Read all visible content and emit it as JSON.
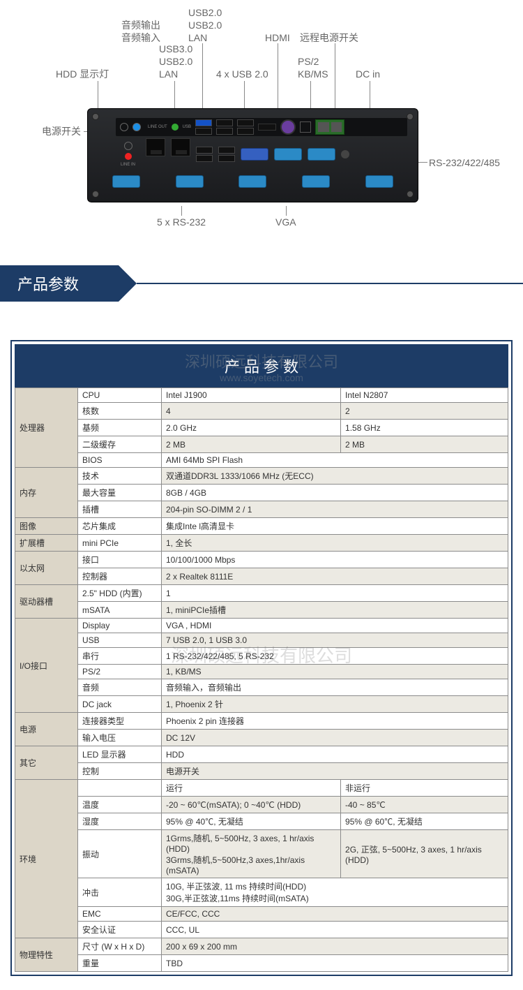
{
  "diagram": {
    "labels": {
      "hdd_led": "HDD 显示灯",
      "power_sw": "电源开关",
      "audio_out": "音频输出",
      "audio_in": "音频输入",
      "usb30": "USB3.0",
      "usb20_a": "USB2.0",
      "lan_a": "LAN",
      "usb20_b1": "USB2.0",
      "usb20_b2": "USB2.0",
      "lan_b": "LAN",
      "usb4": "4 x USB 2.0",
      "hdmi": "HDMI",
      "remote_pwr": "远程电源开关",
      "ps2": "PS/2",
      "kbms": "KB/MS",
      "dcin": "DC in",
      "rs232_485": "RS-232/422/485",
      "rs232x5": "5 x RS-232",
      "vga": "VGA"
    },
    "watermark_cn": "深圳硕远科技有限公司",
    "watermark_en": "www.soyetech.com"
  },
  "banner_title": "产品参数",
  "spec_title": "产 品 参 数",
  "spec": {
    "groups": [
      {
        "cat": "处理器",
        "rows": [
          {
            "sub": "CPU",
            "vals": [
              "Intel J1900",
              "Intel N2807"
            ]
          },
          {
            "sub": "核数",
            "vals": [
              "4",
              "2"
            ]
          },
          {
            "sub": "基频",
            "vals": [
              "2.0 GHz",
              "1.58 GHz"
            ]
          },
          {
            "sub": "二级缓存",
            "vals": [
              "2 MB",
              "2 MB"
            ]
          },
          {
            "sub": "BIOS",
            "vals": [
              "AMI 64Mb SPI Flash"
            ],
            "span": true
          }
        ]
      },
      {
        "cat": "内存",
        "rows": [
          {
            "sub": "技术",
            "vals": [
              "双通道DDR3L 1333/1066 MHz (无ECC)"
            ],
            "span": true
          },
          {
            "sub": "最大容量",
            "vals": [
              "8GB / 4GB"
            ],
            "span": true
          },
          {
            "sub": "插槽",
            "vals": [
              "204-pin SO-DIMM 2 / 1"
            ],
            "span": true
          }
        ]
      },
      {
        "cat": "图像",
        "rows": [
          {
            "sub": "芯片集成",
            "vals": [
              "集成Inte l高清显卡"
            ],
            "span": true
          }
        ]
      },
      {
        "cat": "扩展槽",
        "rows": [
          {
            "sub": "mini PCIe",
            "vals": [
              "1, 全长"
            ],
            "span": true
          }
        ]
      },
      {
        "cat": "以太网",
        "rows": [
          {
            "sub": "接口",
            "vals": [
              "10/100/1000 Mbps"
            ],
            "span": true
          },
          {
            "sub": "控制器",
            "vals": [
              "2 x Realtek 8111E"
            ],
            "span": true
          }
        ]
      },
      {
        "cat": "驱动器槽",
        "rows": [
          {
            "sub": "2.5\" HDD (内置)",
            "vals": [
              "1"
            ],
            "span": true
          },
          {
            "sub": "mSATA",
            "vals": [
              "1, miniPCIe插槽"
            ],
            "span": true
          }
        ]
      },
      {
        "cat": "I/O接口",
        "rows": [
          {
            "sub": "Display",
            "vals": [
              "VGA , HDMI"
            ],
            "span": true
          },
          {
            "sub": "USB",
            "vals": [
              "7 USB 2.0, 1 USB 3.0"
            ],
            "span": true
          },
          {
            "sub": "串行",
            "vals": [
              "1 RS-232/422/485, 5 RS-232"
            ],
            "span": true
          },
          {
            "sub": "PS/2",
            "vals": [
              "1, KB/MS"
            ],
            "span": true
          },
          {
            "sub": "音频",
            "vals": [
              "音频输入，音频输出"
            ],
            "span": true
          },
          {
            "sub": "DC jack",
            "vals": [
              "1, Phoenix 2 针"
            ],
            "span": true
          }
        ]
      },
      {
        "cat": "电源",
        "rows": [
          {
            "sub": "连接器类型",
            "vals": [
              "Phoenix 2 pin 连接器"
            ],
            "span": true
          },
          {
            "sub": "输入电压",
            "vals": [
              "DC 12V"
            ],
            "span": true
          }
        ]
      },
      {
        "cat": "其它",
        "rows": [
          {
            "sub": "LED 显示器",
            "vals": [
              "HDD"
            ],
            "span": true
          },
          {
            "sub": "控制",
            "vals": [
              "电源开关"
            ],
            "span": true
          }
        ]
      },
      {
        "cat": "环境",
        "header": [
          "运行",
          "非运行"
        ],
        "rows": [
          {
            "sub": "温度",
            "vals": [
              "-20 ~ 60℃(mSATA); 0 ~40℃ (HDD)",
              "-40 ~ 85℃"
            ]
          },
          {
            "sub": "湿度",
            "vals": [
              "95% @ 40℃, 无凝结",
              "95% @ 60℃, 无凝结"
            ]
          },
          {
            "sub": "振动",
            "vals": [
              "1Grms,随机, 5~500Hz, 3 axes, 1 hr/axis (HDD)\n3Grms,随机,5~500Hz,3 axes,1hr/axis (mSATA)",
              "2G, 正弦, 5~500Hz, 3 axes, 1 hr/axis (HDD)"
            ]
          },
          {
            "sub": "冲击",
            "vals": [
              "10G, 半正弦波, 11 ms 持续时间(HDD)\n30G,半正弦波,11ms 持续时间(mSATA)"
            ],
            "span": true
          },
          {
            "sub": "EMC",
            "vals": [
              "CE/FCC, CCC"
            ],
            "span": true
          },
          {
            "sub": "安全认证",
            "vals": [
              "CCC, UL"
            ],
            "span": true
          }
        ]
      },
      {
        "cat": "物理特性",
        "rows": [
          {
            "sub": "尺寸 (W x H x D)",
            "vals": [
              "200 x 69 x 200 mm"
            ],
            "span": true
          },
          {
            "sub": "重量",
            "vals": [
              "TBD"
            ],
            "span": true
          }
        ]
      }
    ]
  }
}
